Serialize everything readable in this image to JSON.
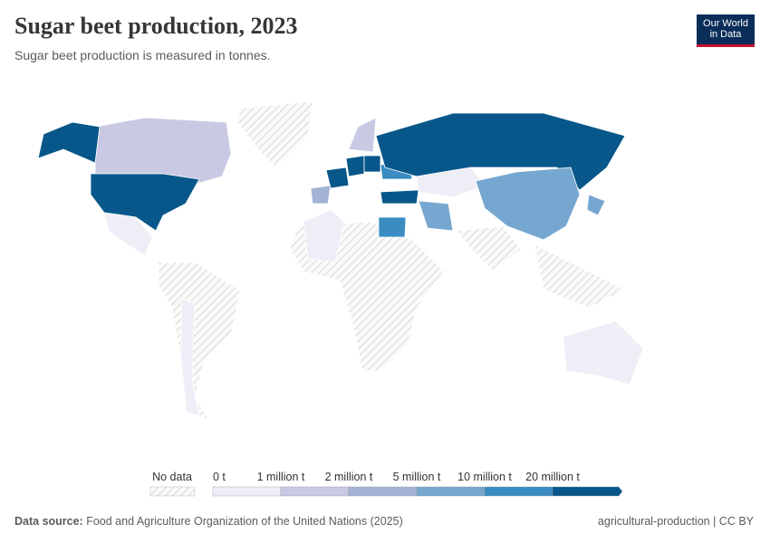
{
  "header": {
    "title": "Sugar beet production, 2023",
    "subtitle": "Sugar beet production is measured in tonnes.",
    "logo": [
      "Our World",
      "in Data"
    ]
  },
  "legend": {
    "no_data": "No data",
    "ticks": [
      "0 t",
      "1 million t",
      "2 million t",
      "5 million t",
      "10 million t",
      "20 million t"
    ],
    "colors": [
      "#efedf5",
      "#c8c9e2",
      "#a3b3d5",
      "#76a7d0",
      "#3a8cc2",
      "#08578a"
    ]
  },
  "footer": {
    "source_label": "Data source:",
    "source": "Food and Agriculture Organization of the United Nations (2025)",
    "credit": "agricultural-production | CC BY"
  }
}
